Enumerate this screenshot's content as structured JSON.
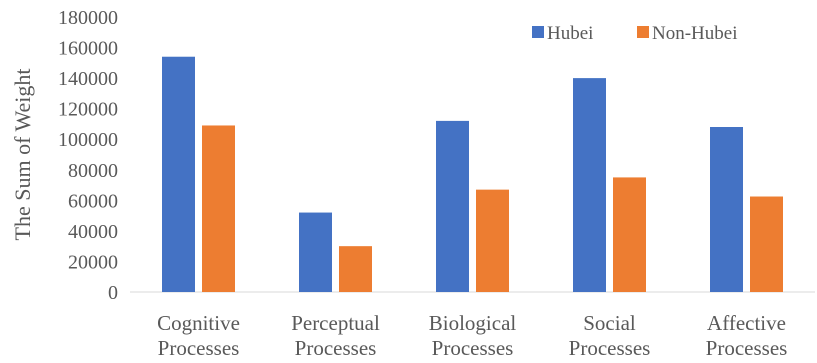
{
  "chart_data": {
    "type": "bar",
    "title": "",
    "xlabel": "",
    "ylabel": "The Sum of Weight",
    "categories": [
      [
        "Cognitive",
        "Processes"
      ],
      [
        "Perceptual",
        "Processes"
      ],
      [
        "Biological",
        "Processes"
      ],
      [
        "Social",
        "Processes"
      ],
      [
        "Affective",
        "Processes"
      ]
    ],
    "series": [
      {
        "name": "Hubei",
        "color": "#4472C4",
        "values": [
          154000,
          52000,
          112000,
          140000,
          108000
        ]
      },
      {
        "name": "Non-Hubei",
        "color": "#ED7D31",
        "values": [
          109000,
          30000,
          67000,
          75000,
          62500
        ]
      }
    ],
    "ylim": [
      0,
      180000
    ],
    "yticks": [
      "0",
      "20000",
      "40000",
      "60000",
      "80000",
      "100000",
      "120000",
      "140000",
      "160000",
      "180000"
    ],
    "legend_position": "top-right",
    "grid": false
  }
}
